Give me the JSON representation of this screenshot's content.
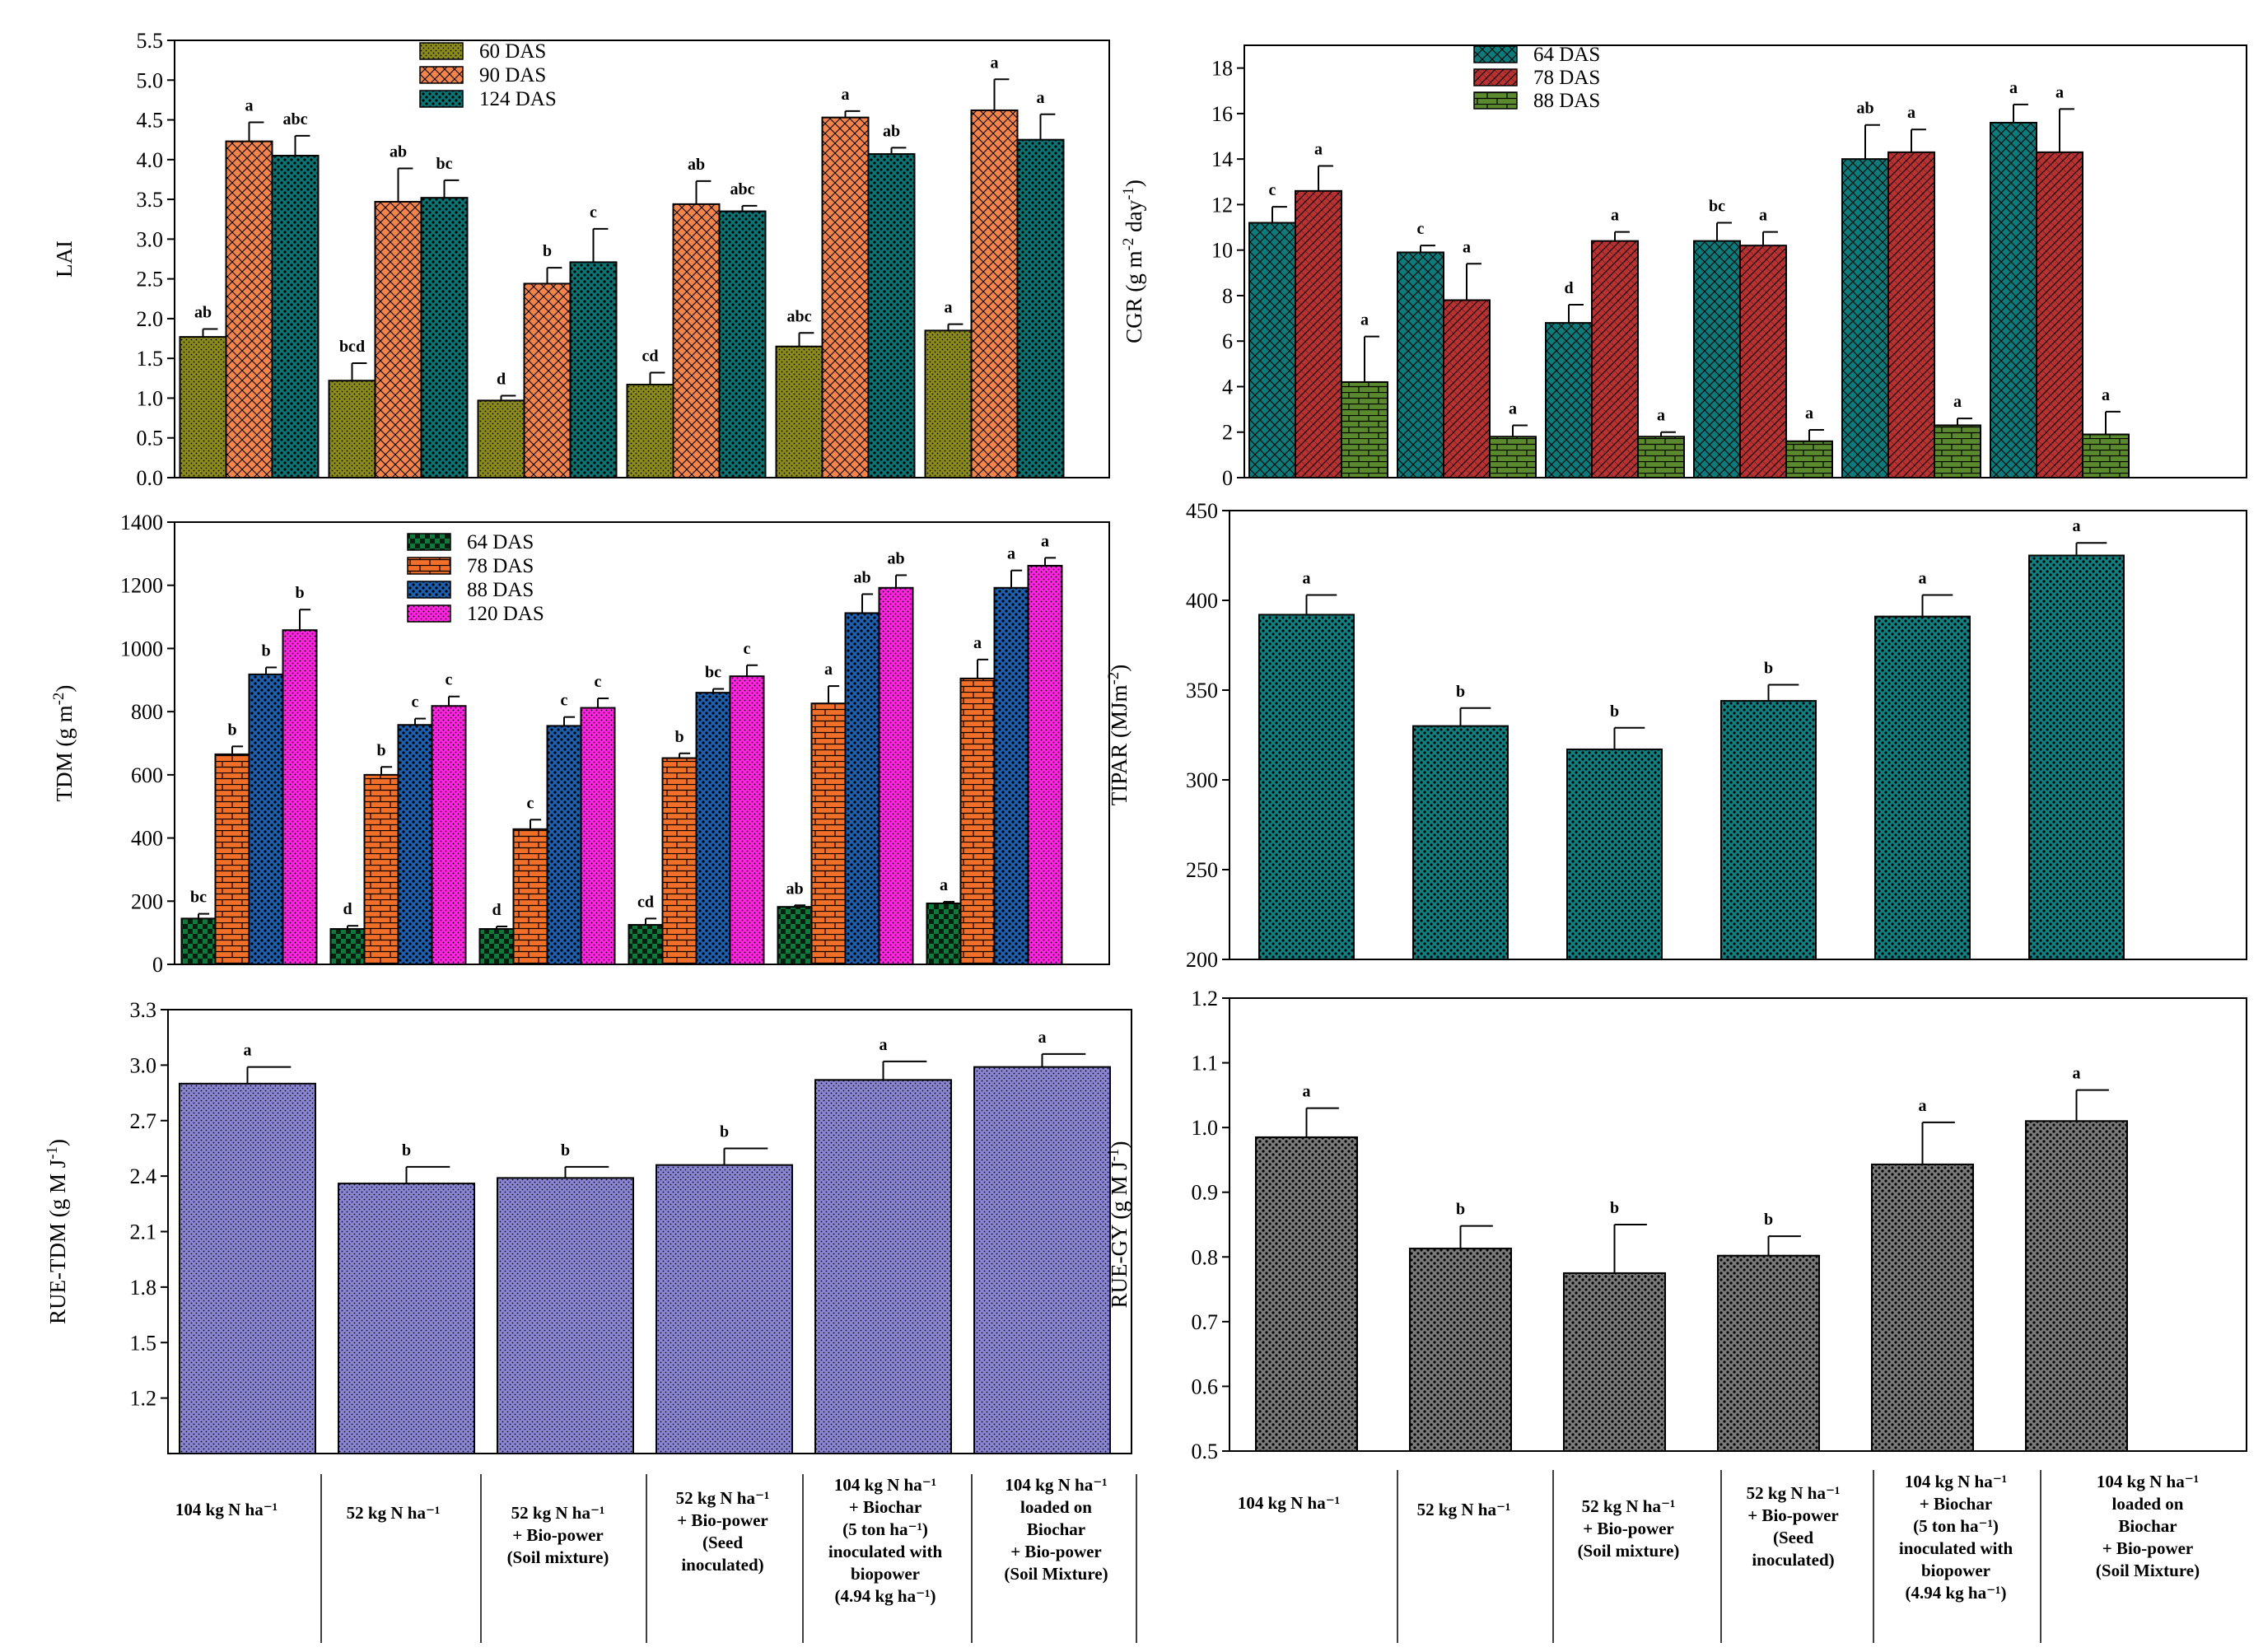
{
  "colors": {
    "lai_60": "#8a8a1e",
    "lai_90": "#f4844b",
    "lai_124": "#0d7474",
    "cgr_64": "#0e7a7a",
    "cgr_78": "#b83232",
    "cgr_88": "#5b8a2e",
    "tdm_64": "#0f7a3c",
    "tdm_78": "#f26f2a",
    "tdm_88": "#1f5fb0",
    "tdm_120": "#ff24e0",
    "tipar": "#128080",
    "rue_tdm": "#8a86d4",
    "rue_gy": "#7a7a7a"
  },
  "category_labels": [
    "104 kg N ha⁻¹",
    "52 kg N ha⁻¹",
    "52 kg N ha⁻¹\n+ Bio-power\n(Soil mixture)",
    "52 kg N ha⁻¹\n+ Bio-power\n(Seed\ninoculated)",
    "104 kg N ha⁻¹\n+ Biochar\n(5 ton ha⁻¹)\ninoculated with\nbiopower\n(4.94 kg ha⁻¹)",
    "104 kg N ha⁻¹\nloaded on\nBiochar\n+ Bio-power\n(Soil Mixture)"
  ],
  "chart_data": [
    {
      "id": "lai",
      "type": "bar",
      "ylabel": "LAI",
      "ylim": [
        0,
        5.5
      ],
      "yticks": [
        "0.0",
        "0.5",
        "1.0",
        "1.5",
        "2.0",
        "2.5",
        "3.0",
        "3.5",
        "4.0",
        "4.5",
        "5.0",
        "5.5"
      ],
      "legend_position": "top-center",
      "series": [
        {
          "name": "60 DAS",
          "values": [
            1.77,
            1.22,
            0.97,
            1.17,
            1.65,
            1.85
          ],
          "errors": [
            0.1,
            0.22,
            0.06,
            0.15,
            0.17,
            0.08
          ],
          "letters": [
            "ab",
            "bcd",
            "d",
            "cd",
            "abc",
            "a"
          ]
        },
        {
          "name": "90 DAS",
          "values": [
            4.23,
            3.47,
            2.44,
            3.44,
            4.53,
            4.62
          ],
          "errors": [
            0.24,
            0.42,
            0.2,
            0.29,
            0.08,
            0.39
          ],
          "letters": [
            "a",
            "ab",
            "b",
            "ab",
            "a",
            "a"
          ]
        },
        {
          "name": "124 DAS",
          "values": [
            4.05,
            3.52,
            2.71,
            3.35,
            4.07,
            4.25
          ],
          "errors": [
            0.25,
            0.22,
            0.42,
            0.07,
            0.08,
            0.32
          ],
          "letters": [
            "abc",
            "bc",
            "c",
            "abc",
            "ab",
            "a"
          ]
        }
      ]
    },
    {
      "id": "cgr",
      "type": "bar",
      "ylabel": "CGR (g m⁻² day⁻¹)",
      "ylim": [
        0,
        19
      ],
      "yticks": [
        "0",
        "2",
        "4",
        "6",
        "8",
        "10",
        "12",
        "14",
        "16",
        "18"
      ],
      "legend_position": "top-center",
      "series": [
        {
          "name": "64 DAS",
          "values": [
            11.2,
            9.9,
            6.8,
            10.4,
            14.0,
            15.6
          ],
          "errors": [
            0.7,
            0.3,
            0.8,
            0.8,
            1.5,
            0.8
          ],
          "letters": [
            "c",
            "c",
            "d",
            "bc",
            "ab",
            "a"
          ]
        },
        {
          "name": "78 DAS",
          "values": [
            12.6,
            7.8,
            10.4,
            10.2,
            14.3,
            14.3
          ],
          "errors": [
            1.1,
            1.6,
            0.4,
            0.6,
            1.0,
            1.9
          ],
          "letters": [
            "a",
            "a",
            "a",
            "a",
            "a",
            "a"
          ]
        },
        {
          "name": "88 DAS",
          "values": [
            4.2,
            1.8,
            1.8,
            1.6,
            2.3,
            1.9
          ],
          "errors": [
            2.0,
            0.5,
            0.2,
            0.5,
            0.3,
            1.0
          ],
          "letters": [
            "a",
            "a",
            "a",
            "a",
            "a",
            "a"
          ]
        }
      ]
    },
    {
      "id": "tdm",
      "type": "bar",
      "ylabel": "TDM (g m⁻²)",
      "ylim": [
        0,
        1400
      ],
      "yticks": [
        "0",
        "200",
        "400",
        "600",
        "800",
        "1000",
        "1200",
        "1400"
      ],
      "legend_position": "top-center",
      "series": [
        {
          "name": "64 DAS",
          "values": [
            145,
            112,
            112,
            125,
            182,
            193
          ],
          "errors": [
            15,
            10,
            8,
            20,
            5,
            5
          ],
          "letters": [
            "bc",
            "d",
            "d",
            "cd",
            "ab",
            "a"
          ]
        },
        {
          "name": "78 DAS",
          "values": [
            665,
            600,
            428,
            653,
            826,
            905
          ],
          "errors": [
            25,
            25,
            30,
            15,
            55,
            60
          ],
          "letters": [
            "b",
            "b",
            "c",
            "b",
            "a",
            "a"
          ]
        },
        {
          "name": "88 DAS",
          "values": [
            918,
            758,
            755,
            860,
            1112,
            1192
          ],
          "errors": [
            22,
            20,
            28,
            12,
            60,
            55
          ],
          "letters": [
            "b",
            "c",
            "c",
            "bc",
            "ab",
            "a"
          ]
        },
        {
          "name": "120 DAS",
          "values": [
            1058,
            818,
            812,
            912,
            1192,
            1262
          ],
          "errors": [
            65,
            30,
            30,
            35,
            40,
            25
          ],
          "letters": [
            "b",
            "c",
            "c",
            "c",
            "ab",
            "a"
          ]
        }
      ]
    },
    {
      "id": "tipar",
      "type": "bar",
      "ylabel": "TIPAR (MJm⁻²)",
      "ylim": [
        200,
        450
      ],
      "yticks": [
        "200",
        "250",
        "300",
        "350",
        "400",
        "450"
      ],
      "series": [
        {
          "name": "TIPAR",
          "values": [
            392,
            330,
            317,
            344,
            391,
            425
          ],
          "errors": [
            11,
            10,
            12,
            9,
            12,
            7
          ],
          "letters": [
            "a",
            "b",
            "b",
            "b",
            "a",
            "a"
          ]
        }
      ]
    },
    {
      "id": "rue_tdm",
      "type": "bar",
      "ylabel": "RUE-TDM (g M J⁻¹)",
      "ylim": [
        0.9,
        3.3
      ],
      "yticks": [
        "1.2",
        "1.5",
        "1.8",
        "2.1",
        "2.4",
        "2.7",
        "3.0",
        "3.3"
      ],
      "series": [
        {
          "name": "RUE-TDM",
          "values": [
            2.9,
            2.36,
            2.39,
            2.46,
            2.92,
            2.99
          ],
          "errors": [
            0.09,
            0.09,
            0.06,
            0.09,
            0.1,
            0.07
          ],
          "letters": [
            "a",
            "b",
            "b",
            "b",
            "a",
            "a"
          ]
        }
      ]
    },
    {
      "id": "rue_gy",
      "type": "bar",
      "ylabel": "RUE-GY (g M J⁻¹)",
      "ylim": [
        0.5,
        1.2
      ],
      "yticks": [
        "0.5",
        "0.6",
        "0.7",
        "0.8",
        "0.9",
        "1.0",
        "1.1",
        "1.2"
      ],
      "series": [
        {
          "name": "RUE-GY",
          "values": [
            0.985,
            0.813,
            0.775,
            0.802,
            0.943,
            1.01
          ],
          "errors": [
            0.045,
            0.035,
            0.075,
            0.03,
            0.065,
            0.048
          ],
          "letters": [
            "a",
            "b",
            "b",
            "b",
            "a",
            "a"
          ]
        }
      ]
    }
  ]
}
